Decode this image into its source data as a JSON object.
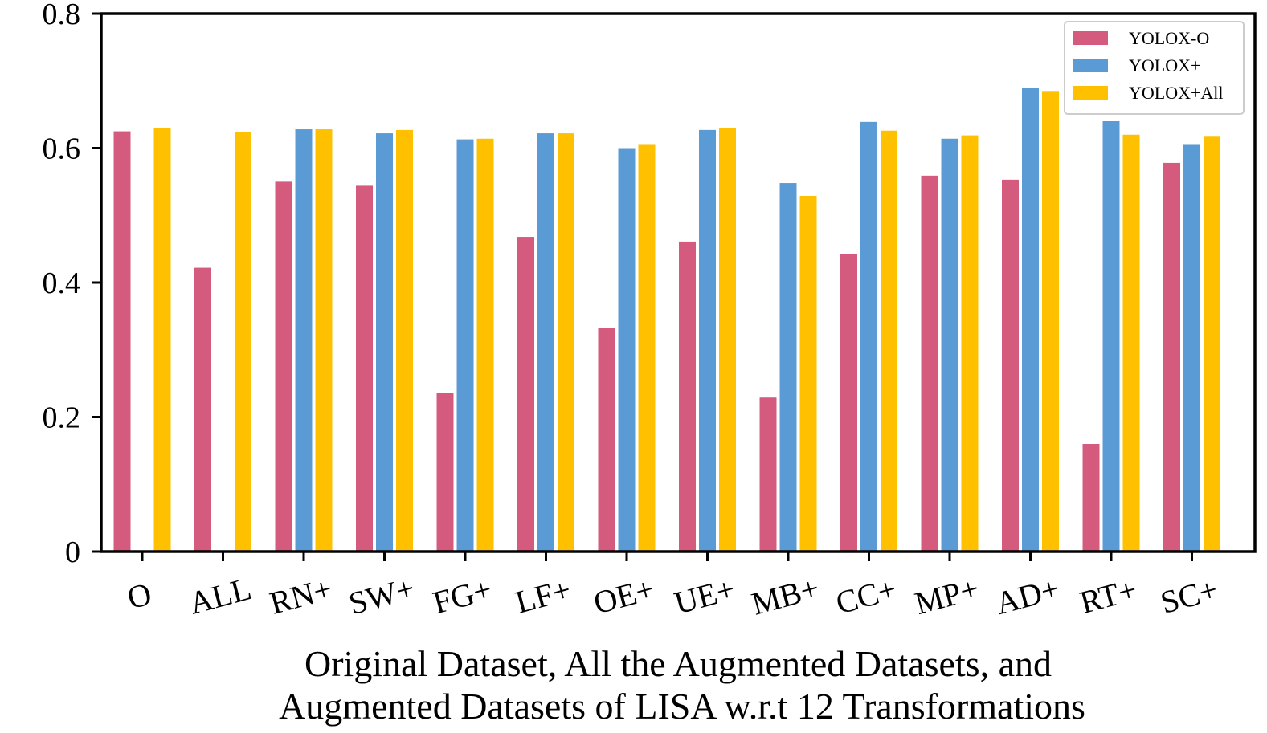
{
  "chart_data": {
    "type": "bar",
    "xlabel_lines": [
      "Original Dataset, All the Augmented Datasets, and",
      "Augmented Datasets of LISA w.r.t 12 Transformations"
    ],
    "ylabel": "",
    "ylim": [
      0,
      0.8
    ],
    "yticks": [
      0,
      0.2,
      0.4,
      0.6,
      0.8
    ],
    "ytick_labels": [
      "0",
      "0.2",
      "0.4",
      "0.6",
      "0.8"
    ],
    "categories": [
      "O",
      "ALL",
      "RN+",
      "SW+",
      "FG+",
      "LF+",
      "OE+",
      "UE+",
      "MB+",
      "CC+",
      "MP+",
      "AD+",
      "RT+",
      "SC+"
    ],
    "legend_position": "top-right",
    "grid": false,
    "series": [
      {
        "name": "YOLOX-O",
        "color": "#d45a7e",
        "values": [
          0.625,
          0.422,
          0.55,
          0.544,
          0.236,
          0.468,
          0.333,
          0.461,
          0.229,
          0.443,
          0.559,
          0.553,
          0.16,
          0.578
        ]
      },
      {
        "name": "YOLOX+",
        "color": "#5b9bd5",
        "values": [
          null,
          null,
          0.628,
          0.622,
          0.613,
          0.622,
          0.6,
          0.627,
          0.548,
          0.639,
          0.614,
          0.689,
          0.64,
          0.606
        ]
      },
      {
        "name": "YOLOX+All",
        "color": "#ffc000",
        "values": [
          0.63,
          0.624,
          0.628,
          0.627,
          0.614,
          0.622,
          0.606,
          0.63,
          0.529,
          0.626,
          0.619,
          0.685,
          0.62,
          0.617
        ]
      }
    ]
  }
}
